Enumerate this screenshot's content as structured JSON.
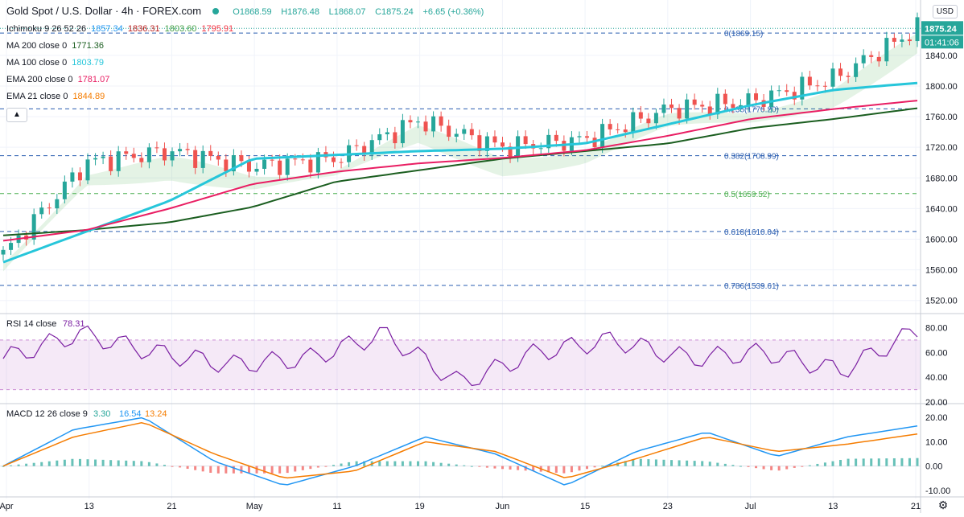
{
  "header": {
    "symbol_title": "Gold Spot / U.S. Dollar · 4h · FOREX.com",
    "ohlc": {
      "open": "O1868.59",
      "high": "H1876.48",
      "low": "L1868.07",
      "close": "C1875.24",
      "change": "+6.65 (+0.36%)"
    },
    "currency_button": "USD"
  },
  "indicators": [
    {
      "label": "Ichimoku 9 26 52 26",
      "values": [
        {
          "v": "1857.34",
          "color": "#2196f3"
        },
        {
          "v": "1836.31",
          "color": "#b71c1c"
        },
        {
          "v": "1803.60",
          "color": "#43a047"
        },
        {
          "v": "1795.91",
          "color": "#f23645"
        }
      ]
    },
    {
      "label": "MA 200 close 0",
      "values": [
        {
          "v": "1771.36",
          "color": "#1b5e20"
        }
      ]
    },
    {
      "label": "MA 100 close 0",
      "values": [
        {
          "v": "1803.79",
          "color": "#26c6da"
        }
      ]
    },
    {
      "label": "EMA 200 close 0",
      "values": [
        {
          "v": "1781.07",
          "color": "#e91e63"
        }
      ]
    },
    {
      "label": "EMA 21 close 0",
      "values": [
        {
          "v": "1844.89",
          "color": "#f57c00"
        }
      ]
    }
  ],
  "price_axis": {
    "ticks": [
      "1840.00",
      "1800.00",
      "1760.00",
      "1720.00",
      "1680.00",
      "1640.00",
      "1600.00",
      "1560.00",
      "1520.00"
    ],
    "current_price_label": "1875.24",
    "countdown_label": "01:41:06"
  },
  "fibonacci": [
    {
      "label": "0(1869.15)",
      "value": 1869.15,
      "color": "#2a5db0"
    },
    {
      "label": "0.236(1770.20)",
      "value": 1770.2,
      "color": "#2a5db0"
    },
    {
      "label": "0.382(1708.99)",
      "value": 1708.99,
      "color": "#2a5db0"
    },
    {
      "label": "0.5(1659.52)",
      "value": 1659.52,
      "color": "#4caf50"
    },
    {
      "label": "0.618(1610.04)",
      "value": 1610.04,
      "color": "#2a5db0"
    },
    {
      "label": "0.786(1539.61)",
      "value": 1539.61,
      "color": "#2a5db0"
    }
  ],
  "rsi": {
    "label": "RSI 14 close",
    "value": "78.31",
    "ticks": [
      "80.00",
      "60.00",
      "40.00",
      "20.00"
    ]
  },
  "macd": {
    "label": "MACD 12 26 close 9",
    "values": [
      {
        "v": "3.30",
        "color": "#26a69a"
      },
      {
        "v": "16.54",
        "color": "#2196f3"
      },
      {
        "v": "13.24",
        "color": "#f57c00"
      }
    ],
    "ticks": [
      "20.00",
      "10.00",
      "0.00",
      "-10.00"
    ]
  },
  "time_axis": {
    "labels": [
      "Apr",
      "13",
      "21",
      "May",
      "11",
      "19",
      "Jun",
      "15",
      "23",
      "Jul",
      "13",
      "21"
    ]
  },
  "chart_data": {
    "type": "line",
    "title": "Gold Spot / U.S. Dollar · 4h · FOREX.com",
    "x": [
      "Apr",
      "13",
      "21",
      "May",
      "11",
      "19",
      "Jun",
      "15",
      "23",
      "Jul",
      "13",
      "21"
    ],
    "ylim": [
      1505,
      1885
    ],
    "series": [
      {
        "name": "",
        "values": [
          1580,
          1700,
          1715,
          1695,
          1705,
          1755,
          1720,
          1730,
          1770,
          1780,
          1810,
          1875
        ]
      },
      {
        "name": "MA 200 close 0",
        "values": [
          1605,
          1612,
          1622,
          1642,
          1675,
          1690,
          1705,
          1715,
          1725,
          1745,
          1757,
          1771
        ]
      },
      {
        "name": "MA 100 close 0",
        "values": [
          1570,
          1610,
          1650,
          1705,
          1710,
          1715,
          1718,
          1725,
          1750,
          1775,
          1795,
          1804
        ]
      },
      {
        "name": "EMA 200 close 0",
        "values": [
          1598,
          1612,
          1640,
          1672,
          1688,
          1699,
          1706,
          1716,
          1735,
          1757,
          1770,
          1781
        ]
      }
    ],
    "fib_levels": [
      1869.15,
      1770.2,
      1708.99,
      1659.52,
      1610.04,
      1539.61
    ],
    "rsi_range": [
      20,
      90
    ],
    "rsi_bands": [
      30,
      70
    ],
    "rsi_series": [
      55,
      75,
      60,
      50,
      55,
      75,
      35,
      60,
      70,
      55,
      60,
      45,
      78
    ],
    "macd_range": [
      -12,
      25
    ],
    "macd_series": [
      0,
      15,
      20,
      2,
      -8,
      0,
      12,
      5,
      -8,
      6,
      14,
      4,
      12,
      16.5
    ],
    "signal_series": [
      0,
      12,
      18,
      5,
      -5,
      -2,
      10,
      6,
      -5,
      3,
      12,
      6,
      9,
      13.2
    ]
  }
}
